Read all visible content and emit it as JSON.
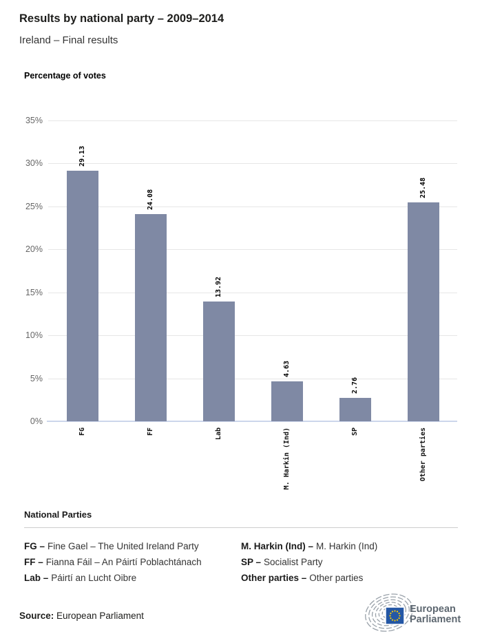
{
  "header": {
    "title": "Results by national party – 2009–2014",
    "subtitle": "Ireland – Final results"
  },
  "chart_data": {
    "type": "bar",
    "title": "Percentage of votes",
    "categories": [
      "FG",
      "FF",
      "Lab",
      "M. Harkin (Ind)",
      "SP",
      "Other parties"
    ],
    "values": [
      29.13,
      24.08,
      13.92,
      4.63,
      2.76,
      25.48
    ],
    "value_labels": [
      "29.13",
      "24.08",
      "13.92",
      "4.63",
      "2.76",
      "25.48"
    ],
    "xlabel": "",
    "ylabel": "Percentage of votes",
    "ylim": [
      0,
      35
    ],
    "ytick_step": 5,
    "ytick_suffix": "%",
    "grid": true,
    "legend_position": "none",
    "bar_color": "#7F89A4",
    "gridline_color": "#E6E6E6",
    "axis_line_color": "#CCD6EB",
    "tick_label_color": "#666666",
    "value_label_rotation": -90,
    "category_label_rotation": -90
  },
  "legend": {
    "heading": "National Parties",
    "entries": [
      {
        "label": "FG –",
        "name": "Fine Gael – The United Ireland Party"
      },
      {
        "label": "FF –",
        "name": "Fianna Fáil – An Páirtí Poblachtánach"
      },
      {
        "label": "Lab –",
        "name": "Páirtí an Lucht Oibre"
      },
      {
        "label": "M. Harkin (Ind) –",
        "name": "M. Harkin (Ind)"
      },
      {
        "label": "SP –",
        "name": "Socialist Party"
      },
      {
        "label": "Other parties –",
        "name": "Other parties"
      }
    ]
  },
  "footer": {
    "source_label": "Source:",
    "source_value": "European Parliament",
    "logo_line1": "European",
    "logo_line2": "Parliament",
    "logo_colors": {
      "flag_blue": "#2457A5",
      "star_yellow": "#FFCC00",
      "arc_gray": "#99A1A9",
      "text_gray": "#5D6770"
    }
  }
}
